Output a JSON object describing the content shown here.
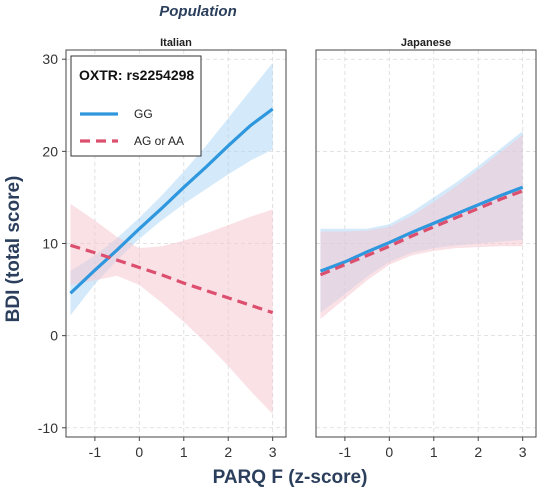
{
  "chart_data": {
    "type": "line",
    "title": "Population",
    "xlabel": "PARQ F (z-score)",
    "ylabel": "BDI (total score)",
    "xlim": [
      -1.65,
      3.3
    ],
    "ylim": [
      -11,
      31
    ],
    "xticks": [
      -1,
      0,
      1,
      2,
      3
    ],
    "xtick_labels": [
      "-1",
      "0",
      "1",
      "2",
      "3"
    ],
    "yticks": [
      -10,
      0,
      10,
      20,
      30
    ],
    "ytick_labels": [
      "-10",
      "0",
      "10",
      "20",
      "30"
    ],
    "grid": true,
    "legend": {
      "title": "OXTR: rs2254298",
      "placement": "top-left",
      "entries": [
        {
          "label": "GG",
          "color": "#2f97dd",
          "dash": false
        },
        {
          "label": "AG or AA",
          "color": "#dd4f6e",
          "dash": true
        }
      ]
    },
    "panels": [
      {
        "name": "Italian",
        "series": [
          {
            "name": "GG",
            "color": "#2f97dd",
            "band_color": "#a9d6f5",
            "dashed": false,
            "x": [
              -1.55,
              -1,
              -0.5,
              0,
              0.5,
              1,
              1.5,
              2,
              2.5,
              3
            ],
            "y": [
              4.6,
              7.1,
              9.3,
              11.6,
              13.8,
              16.1,
              18.3,
              20.6,
              22.8,
              24.6
            ],
            "lower": [
              2.2,
              5.6,
              8.2,
              10.5,
              12.5,
              14.3,
              15.9,
              17.5,
              19.0,
              20.2
            ],
            "upper": [
              7.0,
              8.7,
              10.6,
              12.8,
              15.2,
              17.8,
              20.6,
              23.6,
              26.6,
              29.6
            ]
          },
          {
            "name": "AG or AA",
            "color": "#dd4f6e",
            "band_color": "#f6c3cd",
            "dashed": true,
            "x": [
              -1.55,
              -1,
              -0.5,
              0,
              0.5,
              1,
              1.5,
              2,
              2.5,
              3
            ],
            "y": [
              9.8,
              9.0,
              8.2,
              7.4,
              6.6,
              5.7,
              4.9,
              4.1,
              3.3,
              2.5
            ],
            "lower": [
              5.5,
              6.0,
              6.5,
              5.5,
              3.6,
              1.5,
              -0.8,
              -3.3,
              -6.0,
              -8.5
            ],
            "upper": [
              14.3,
              12.5,
              10.7,
              9.5,
              9.7,
              10.3,
              11.1,
              12.0,
              12.9,
              13.7
            ]
          }
        ]
      },
      {
        "name": "Japanese",
        "series": [
          {
            "name": "GG",
            "color": "#2f97dd",
            "band_color": "#a9d6f5",
            "dashed": false,
            "x": [
              -1.55,
              -1,
              -0.5,
              0,
              0.5,
              1,
              1.5,
              2,
              2.5,
              3
            ],
            "y": [
              7.0,
              8.0,
              9.1,
              10.1,
              11.2,
              12.2,
              13.2,
              14.2,
              15.2,
              16.1
            ],
            "lower": [
              2.5,
              4.5,
              6.4,
              8.0,
              9.0,
              9.5,
              9.8,
              10.0,
              10.2,
              10.4
            ],
            "upper": [
              11.6,
              11.6,
              11.6,
              12.1,
              13.4,
              15.0,
              16.6,
              18.4,
              20.3,
              22.2
            ]
          },
          {
            "name": "AG or AA",
            "color": "#dd4f6e",
            "band_color": "#f6c3cd",
            "dashed": true,
            "x": [
              -1.55,
              -1,
              -0.5,
              0,
              0.5,
              1,
              1.5,
              2,
              2.5,
              3
            ],
            "y": [
              6.6,
              7.7,
              8.7,
              9.7,
              10.8,
              11.8,
              12.8,
              13.8,
              14.8,
              15.7
            ],
            "lower": [
              1.8,
              4.0,
              6.0,
              7.7,
              8.7,
              9.2,
              9.5,
              9.6,
              9.7,
              9.7
            ],
            "upper": [
              11.3,
              11.3,
              11.4,
              11.8,
              13.0,
              14.5,
              16.2,
              18.0,
              19.9,
              21.8
            ]
          }
        ]
      }
    ]
  }
}
